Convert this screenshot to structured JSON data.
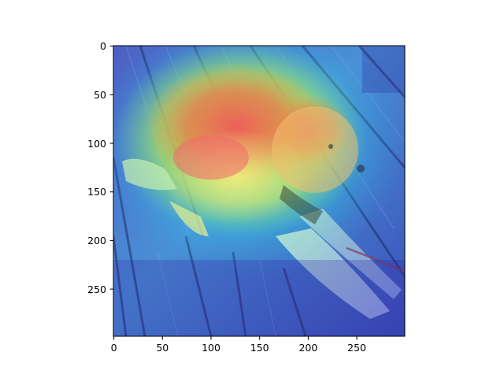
{
  "figure": {
    "image_description_icon": "dog-heatmap-overlay-image",
    "colormap": "jet",
    "axes": {
      "x_ticks": [
        "0",
        "50",
        "100",
        "150",
        "200",
        "250"
      ],
      "y_ticks": [
        "0",
        "50",
        "100",
        "150",
        "200",
        "250"
      ],
      "x_range": [
        0,
        299
      ],
      "y_range": [
        0,
        299
      ]
    }
  }
}
